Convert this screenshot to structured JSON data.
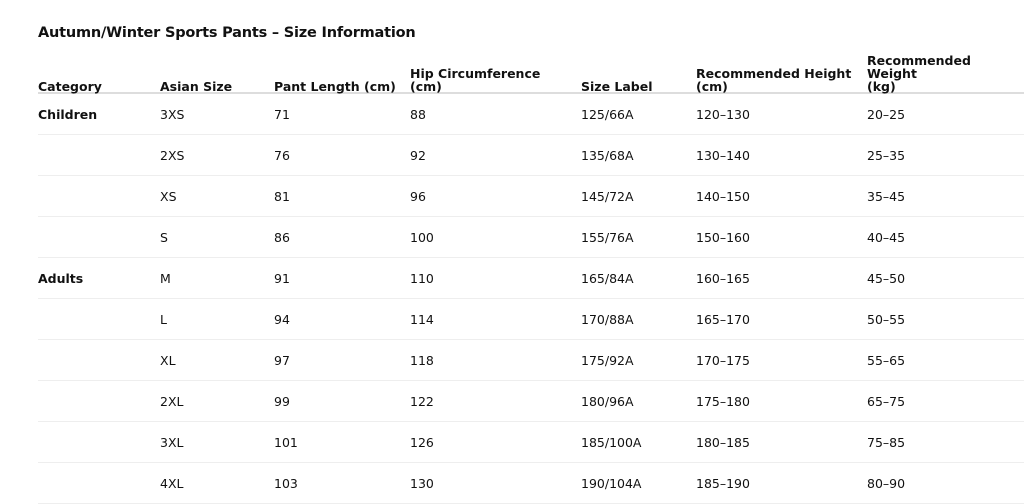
{
  "title": "Autumn/Winter Sports Pants – Size Information",
  "columns": [
    "Category",
    "Asian Size",
    "Pant Length (cm)",
    "Hip Circumference\n(cm)",
    "Size Label",
    "Recommended Height\n(cm)",
    "Recommended Weight\n(kg)"
  ],
  "rows": [
    [
      "Children",
      "3XS",
      "71",
      "88",
      "125/66A",
      "120–130",
      "20–25"
    ],
    [
      "",
      "2XS",
      "76",
      "92",
      "135/68A",
      "130–140",
      "25–35"
    ],
    [
      "",
      "XS",
      "81",
      "96",
      "145/72A",
      "140–150",
      "35–45"
    ],
    [
      "",
      "S",
      "86",
      "100",
      "155/76A",
      "150–160",
      "40–45"
    ],
    [
      "Adults",
      "M",
      "91",
      "110",
      "165/84A",
      "160–165",
      "45–50"
    ],
    [
      "",
      "L",
      "94",
      "114",
      "170/88A",
      "165–170",
      "50–55"
    ],
    [
      "",
      "XL",
      "97",
      "118",
      "175/92A",
      "170–175",
      "55–65"
    ],
    [
      "",
      "2XL",
      "99",
      "122",
      "180/96A",
      "175–180",
      "65–75"
    ],
    [
      "",
      "3XL",
      "101",
      "126",
      "185/100A",
      "180–185",
      "75–85"
    ],
    [
      "",
      "4XL",
      "103",
      "130",
      "190/104A",
      "185–190",
      "80–90"
    ]
  ]
}
